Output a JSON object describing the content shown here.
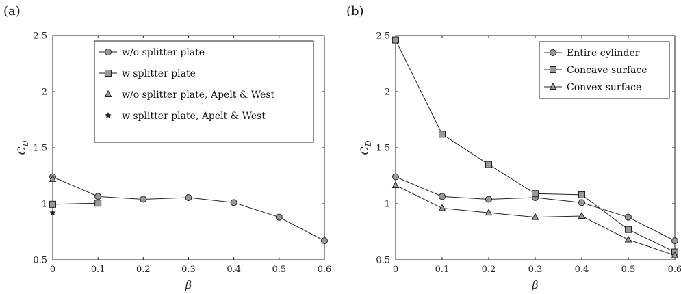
{
  "chart_data": [
    {
      "panel": "(a)",
      "type": "line",
      "xlabel": "β",
      "ylabel": "C_D",
      "xlim": [
        0,
        0.6
      ],
      "ylim": [
        0.5,
        2.5
      ],
      "xticks": [
        "0",
        "0.1",
        "0.2",
        "0.3",
        "0.4",
        "0.5",
        "0.6"
      ],
      "yticks": [
        "0.5",
        "1",
        "1.5",
        "2",
        "2.5"
      ],
      "legend_position": "top-right",
      "grid": false,
      "series": [
        {
          "name": "w/o splitter plate",
          "marker": "circle",
          "line": true,
          "x": [
            0,
            0.1,
            0.2,
            0.3,
            0.4,
            0.5,
            0.6
          ],
          "y": [
            1.24,
            1.065,
            1.04,
            1.055,
            1.01,
            0.88,
            0.67
          ]
        },
        {
          "name": "w splitter plate",
          "marker": "square",
          "line": true,
          "x": [
            0,
            0.1
          ],
          "y": [
            0.995,
            1.005
          ]
        },
        {
          "name": "w/o splitter plate, Apelt & West",
          "marker": "triangle",
          "line": false,
          "x": [
            0
          ],
          "y": [
            1.22
          ]
        },
        {
          "name": "w splitter plate, Apelt & West",
          "marker": "star",
          "line": false,
          "x": [
            0
          ],
          "y": [
            0.92
          ]
        }
      ]
    },
    {
      "panel": "(b)",
      "type": "line",
      "xlabel": "β",
      "ylabel": "C_D",
      "xlim": [
        0,
        0.6
      ],
      "ylim": [
        0.5,
        2.5
      ],
      "xticks": [
        "0",
        "0.1",
        "0.2",
        "0.3",
        "0.4",
        "0.5",
        "0.6"
      ],
      "yticks": [
        "0.5",
        "1",
        "1.5",
        "2",
        "2.5"
      ],
      "legend_position": "top-right",
      "grid": false,
      "series": [
        {
          "name": "Entire cylinder",
          "marker": "circle",
          "line": true,
          "x": [
            0,
            0.1,
            0.2,
            0.3,
            0.4,
            0.5,
            0.6
          ],
          "y": [
            1.24,
            1.065,
            1.04,
            1.055,
            1.01,
            0.88,
            0.67
          ]
        },
        {
          "name": "Concave surface",
          "marker": "square",
          "line": true,
          "x": [
            0,
            0.1,
            0.2,
            0.3,
            0.4,
            0.5,
            0.6
          ],
          "y": [
            2.46,
            1.62,
            1.35,
            1.09,
            1.08,
            0.77,
            0.57
          ]
        },
        {
          "name": "Convex surface",
          "marker": "triangle",
          "line": true,
          "x": [
            0,
            0.1,
            0.2,
            0.3,
            0.4,
            0.5,
            0.6
          ],
          "y": [
            1.165,
            0.96,
            0.92,
            0.88,
            0.89,
            0.68,
            0.54
          ]
        }
      ]
    }
  ],
  "style": {
    "marker_fill": "#999999",
    "stroke": "#222222"
  }
}
